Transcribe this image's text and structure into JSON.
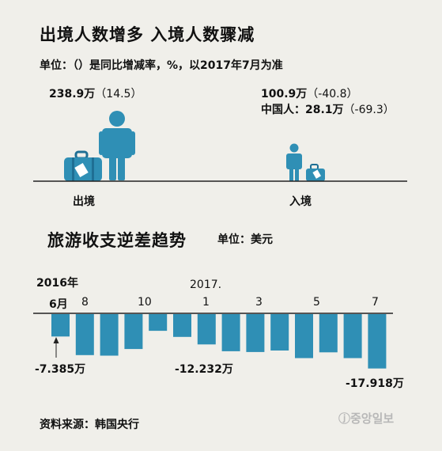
{
  "top": {
    "title": "出境人数增多 入境人数骤减",
    "unit_note": "单位：（）是同比增减率，%，以2017年7月为准",
    "outbound": {
      "value": "238.9万",
      "rate": "（14.5）",
      "label": "出境"
    },
    "inbound": {
      "value": "100.9万",
      "rate": "（-40.8）",
      "chinese_label": "中国人：",
      "chinese_value": "28.1万",
      "chinese_rate": "（-69.3）",
      "label": "入境"
    },
    "colors": {
      "figure": "#2f8fb5",
      "figure_dark": "#1f6f94",
      "baseline": "#222222"
    }
  },
  "bottom": {
    "title": "旅游收支逆差趋势",
    "unit_note": "单位：美元",
    "year_2016": "2016年",
    "year_2017": "2017.",
    "month_6": "6月",
    "month_8": "8",
    "month_10": "10",
    "month_1": "1",
    "month_3": "3",
    "month_5": "5",
    "month_7": "7",
    "callout_first": "-7.385万",
    "callout_mid": "-12.232万",
    "callout_last": "-17.918万",
    "bar_color": "#2f8fb5"
  },
  "chart_data": {
    "type": "bar",
    "title": "旅游收支逆差趋势",
    "unit": "美元",
    "categories": [
      "2016-06",
      "2016-07",
      "2016-08",
      "2016-09",
      "2016-10",
      "2016-11",
      "2016-12",
      "2017-01",
      "2017-02",
      "2017-03",
      "2017-04",
      "2017-05",
      "2017-06",
      "2017-07"
    ],
    "values": [
      -7.385,
      -13.5,
      -13.7,
      -11.5,
      -5.5,
      -7.5,
      -10.0,
      -12.232,
      -12.5,
      -12.0,
      -14.5,
      -12.6,
      -14.5,
      -17.918
    ],
    "value_unit": "万",
    "ylim": [
      -18,
      0
    ],
    "labeled_points": {
      "2016-06": -7.385,
      "2017-01": -12.232,
      "2017-07": -17.918
    }
  },
  "source": "资料来源：韩国央行",
  "brand": "ⓙ중앙일보"
}
